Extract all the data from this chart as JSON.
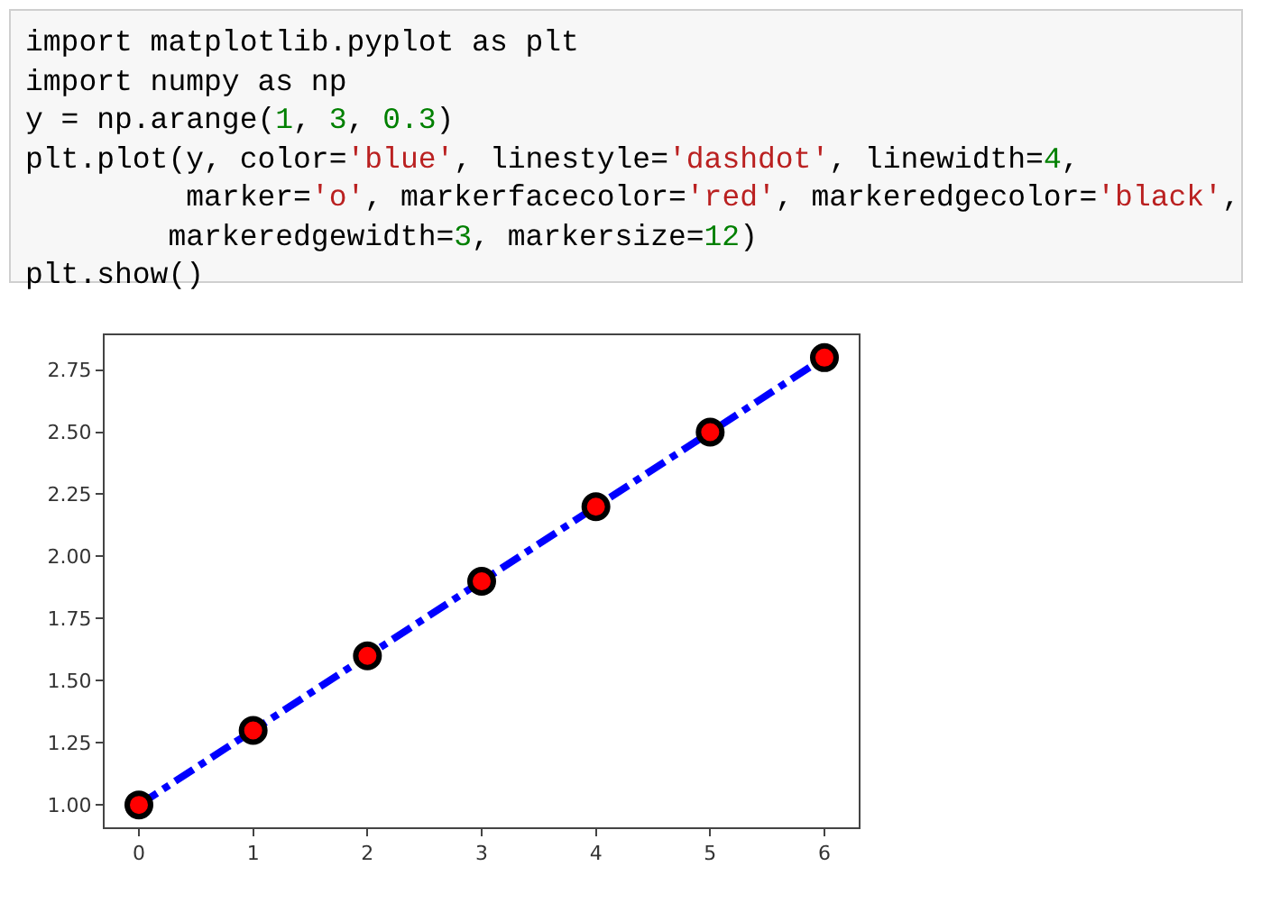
{
  "chart_data": {
    "type": "line",
    "annotations": [
      "import matplotlib.pyplot as plt",
      "import numpy as np",
      "y = np.arange(1, 3, 0.3)",
      "plt.plot(y, color='blue', linestyle='dashdot', linewidth=4,",
      "         marker='o', markerfacecolor='red', markeredgecolor='black',",
      "        markeredgewidth=3, markersize=12)",
      "plt.show()"
    ],
    "x": [
      0,
      1,
      2,
      3,
      4,
      5,
      6
    ],
    "series": [
      {
        "color": "#0000ff",
        "values": [
          1.0,
          1.3,
          1.6,
          1.9,
          2.2,
          2.5,
          2.8
        ]
      }
    ],
    "xlim": [
      -0.3,
      6.3
    ],
    "xticks": [
      0,
      1,
      2,
      3,
      4,
      5,
      6
    ],
    "ylim": [
      0.91,
      2.89
    ],
    "yticks": [
      {
        "value": 1,
        "label": "1.00"
      },
      {
        "value": 1.25,
        "label": "1.25"
      },
      {
        "value": 1.5,
        "label": "1.50"
      },
      {
        "value": 1.75,
        "label": "1.75"
      },
      {
        "value": 2,
        "label": "2.00"
      },
      {
        "value": 2.25,
        "label": "2.25"
      },
      {
        "value": 2.5,
        "label": "2.50"
      },
      {
        "value": 2.75,
        "label": "2.75"
      }
    ],
    "grid": false,
    "marker": "circle",
    "line_style": "dashdot"
  }
}
